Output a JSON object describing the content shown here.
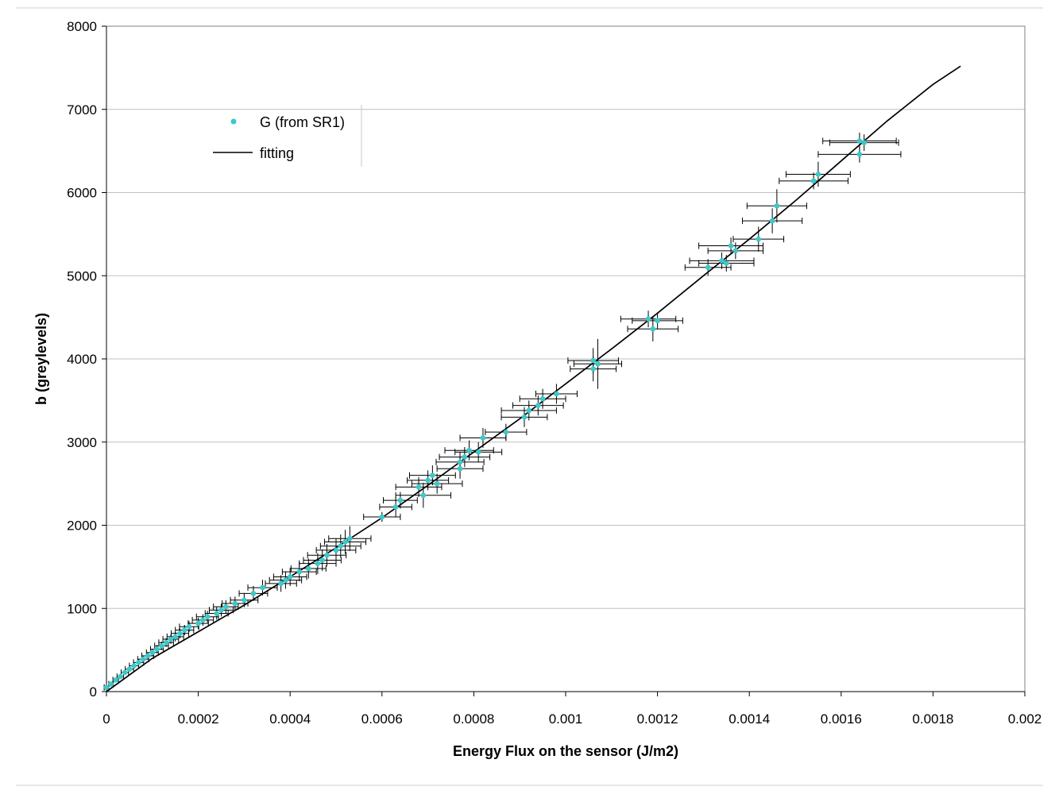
{
  "chart_data": {
    "type": "scatter",
    "title": "",
    "xlabel": "Energy Flux on the sensor (J/m2)",
    "ylabel": "b (greylevels)",
    "xlim": [
      0,
      0.002
    ],
    "ylim": [
      0,
      8000
    ],
    "x_ticks": [
      0,
      0.0002,
      0.0004,
      0.0006,
      0.0008,
      0.001,
      0.0012,
      0.0014,
      0.0016,
      0.0018,
      0.002
    ],
    "x_tick_labels": [
      "0",
      "0.0002",
      "0.0004",
      "0.0006",
      "0.0008",
      "0.001",
      "0.0012",
      "0.0014",
      "0.0016",
      "0.0018",
      "0.002"
    ],
    "y_ticks": [
      0,
      1000,
      2000,
      3000,
      4000,
      5000,
      6000,
      7000,
      8000
    ],
    "y_tick_labels": [
      "0",
      "1000",
      "2000",
      "3000",
      "4000",
      "5000",
      "6000",
      "7000",
      "8000"
    ],
    "grid": "horizontal major gridlines",
    "legend_position": "top-left",
    "colors": {
      "points": "#3cc8c8",
      "error_bars": "#000000",
      "fit_line": "#000000",
      "gridlines": "#c0c0c0"
    },
    "legend": [
      {
        "label": "G (from SR1)",
        "kind": "marker"
      },
      {
        "label": "fitting",
        "kind": "line"
      }
    ],
    "series": [
      {
        "name": "G (from SR1)",
        "kind": "scatter-with-error-bars",
        "x": [
          0,
          1e-05,
          2e-05,
          3e-05,
          4e-05,
          5e-05,
          6e-05,
          7e-05,
          8e-05,
          9e-05,
          0.0001,
          0.00011,
          0.00012,
          0.00013,
          0.00014,
          0.00015,
          0.00016,
          0.00017,
          0.00018,
          0.0002,
          0.00021,
          0.00022,
          0.00024,
          0.00025,
          0.00026,
          0.00028,
          0.0003,
          0.00032,
          0.00034,
          0.00038,
          0.00039,
          0.0004,
          0.00042,
          0.00044,
          0.00046,
          0.00047,
          0.00048,
          0.0005,
          0.00051,
          0.00052,
          0.00053,
          0.0006,
          0.00063,
          0.00064,
          0.00068,
          0.00069,
          0.0007,
          0.00071,
          0.00072,
          0.00077,
          0.00077,
          0.00078,
          0.00079,
          0.00081,
          0.00082,
          0.00087,
          0.00091,
          0.00092,
          0.00094,
          0.00095,
          0.00098,
          0.00106,
          0.00106,
          0.00107,
          0.00118,
          0.00119,
          0.0012,
          0.00131,
          0.00134,
          0.00135,
          0.00136,
          0.00137,
          0.00142,
          0.00145,
          0.00146,
          0.00154,
          0.00155,
          0.00164,
          0.00164,
          0.00165
        ],
        "y": [
          50,
          90,
          140,
          180,
          230,
          270,
          310,
          350,
          390,
          430,
          470,
          510,
          550,
          590,
          630,
          660,
          700,
          740,
          780,
          820,
          860,
          900,
          940,
          980,
          1020,
          1060,
          1100,
          1180,
          1250,
          1300,
          1340,
          1380,
          1440,
          1480,
          1540,
          1580,
          1640,
          1700,
          1750,
          1800,
          1840,
          2100,
          2220,
          2300,
          2460,
          2360,
          2540,
          2600,
          2500,
          2680,
          2760,
          2820,
          2900,
          2880,
          3050,
          3120,
          3300,
          3380,
          3440,
          3520,
          3580,
          3880,
          3980,
          3940,
          4480,
          4360,
          4460,
          5100,
          5180,
          5150,
          5360,
          5300,
          5440,
          5660,
          5840,
          6140,
          6220,
          6460,
          6620,
          6600
        ],
        "x_error": [
          5e-06,
          5e-06,
          6e-06,
          7e-06,
          8e-06,
          9e-06,
          1e-05,
          1.1e-05,
          1.2e-05,
          1.3e-05,
          1.3e-05,
          1.4e-05,
          1.5e-05,
          1.6e-05,
          1.7e-05,
          1.8e-05,
          1.9e-05,
          2e-05,
          2.1e-05,
          2.2e-05,
          2.3e-05,
          2.4e-05,
          2.5e-05,
          2.6e-05,
          2.7e-05,
          2.8e-05,
          3e-05,
          3.1e-05,
          3.2e-05,
          3.4e-05,
          3.5e-05,
          3.6e-05,
          3.7e-05,
          3.8e-05,
          4e-05,
          4.1e-05,
          4.2e-05,
          4.3e-05,
          4.4e-05,
          4.5e-05,
          4.6e-05,
          4e-05,
          3.5e-05,
          3.7e-05,
          5e-05,
          6e-05,
          4.5e-05,
          5e-05,
          5.5e-05,
          5e-05,
          5.2e-05,
          5.5e-05,
          5.3e-05,
          5.1e-05,
          5e-05,
          4.5e-05,
          5e-05,
          6e-05,
          5.5e-05,
          5e-05,
          4.5e-05,
          5e-05,
          5.5e-05,
          5.2e-05,
          6e-05,
          5.5e-05,
          5.5e-05,
          5e-05,
          7e-05,
          6e-05,
          7e-05,
          6e-05,
          5.5e-05,
          6.5e-05,
          6.5e-05,
          7.5e-05,
          7e-05,
          9e-05,
          8e-05,
          7.5e-05
        ],
        "y_error": [
          20,
          22,
          25,
          28,
          30,
          32,
          35,
          38,
          40,
          42,
          45,
          48,
          50,
          52,
          55,
          58,
          60,
          62,
          65,
          68,
          70,
          72,
          75,
          78,
          80,
          82,
          85,
          90,
          95,
          100,
          105,
          110,
          115,
          120,
          125,
          130,
          135,
          140,
          140,
          145,
          150,
          60,
          120,
          100,
          120,
          150,
          120,
          120,
          120,
          120,
          120,
          120,
          120,
          120,
          120,
          100,
          120,
          120,
          120,
          120,
          120,
          150,
          150,
          300,
          100,
          150,
          100,
          100,
          100,
          100,
          100,
          100,
          150,
          150,
          200,
          100,
          150,
          100,
          100,
          100
        ]
      },
      {
        "name": "fitting",
        "kind": "line",
        "x": [
          0,
          0.0001,
          0.0002,
          0.0003,
          0.0004,
          0.0005,
          0.0006,
          0.0007,
          0.0008,
          0.0009,
          0.001,
          0.0011,
          0.0012,
          0.0013,
          0.0014,
          0.0015,
          0.0016,
          0.0017,
          0.0018,
          0.00186
        ],
        "y": [
          0,
          400,
          720,
          1040,
          1380,
          1730,
          2090,
          2480,
          2880,
          3280,
          3700,
          4120,
          4550,
          5000,
          5440,
          5900,
          6380,
          6860,
          7300,
          7520
        ]
      }
    ]
  }
}
